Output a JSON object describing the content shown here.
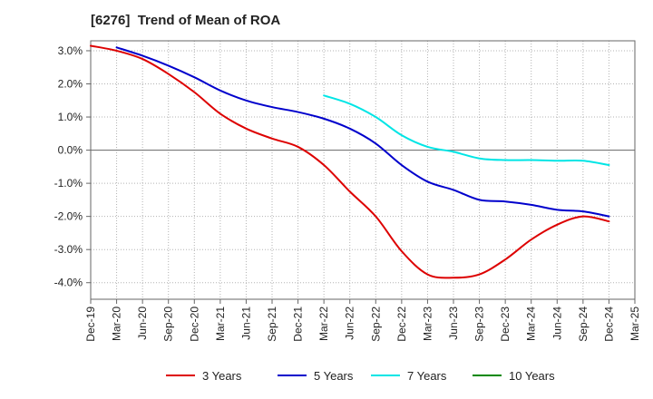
{
  "chart_data": {
    "type": "line",
    "title": "[6276]  Trend of Mean of ROA",
    "xlabel": "",
    "ylabel": "",
    "categories": [
      "Dec-19",
      "Mar-20",
      "Jun-20",
      "Sep-20",
      "Dec-20",
      "Mar-21",
      "Jun-21",
      "Sep-21",
      "Dec-21",
      "Mar-22",
      "Jun-22",
      "Sep-22",
      "Dec-22",
      "Mar-23",
      "Jun-23",
      "Sep-23",
      "Dec-23",
      "Mar-24",
      "Jun-24",
      "Sep-24",
      "Dec-24",
      "Mar-25"
    ],
    "ylim": [
      -4.5,
      3.3
    ],
    "yticks": [
      3.0,
      2.0,
      1.0,
      0.0,
      -1.0,
      -2.0,
      -3.0,
      -4.0
    ],
    "ytick_labels": [
      "3.0%",
      "2.0%",
      "1.0%",
      "0.0%",
      "-1.0%",
      "-2.0%",
      "-3.0%",
      "-4.0%"
    ],
    "grid": true,
    "legend_position": "bottom",
    "series": [
      {
        "name": "3 Years",
        "color": "#dd0000",
        "values": [
          3.15,
          3.0,
          2.75,
          2.3,
          1.75,
          1.1,
          0.65,
          0.35,
          0.1,
          -0.45,
          -1.25,
          -2.0,
          -3.05,
          -3.75,
          -3.85,
          -3.75,
          -3.3,
          -2.7,
          -2.25,
          -2.0,
          -2.15,
          null
        ]
      },
      {
        "name": "5 Years",
        "color": "#0000cc",
        "values": [
          null,
          3.1,
          2.85,
          2.55,
          2.2,
          1.8,
          1.5,
          1.3,
          1.15,
          0.95,
          0.65,
          0.2,
          -0.45,
          -0.95,
          -1.2,
          -1.5,
          -1.55,
          -1.65,
          -1.8,
          -1.85,
          -2.0,
          null
        ]
      },
      {
        "name": "7 Years",
        "color": "#00e5e5",
        "values": [
          null,
          null,
          null,
          null,
          null,
          null,
          null,
          null,
          null,
          1.65,
          1.4,
          1.0,
          0.45,
          0.1,
          -0.05,
          -0.25,
          -0.3,
          -0.3,
          -0.32,
          -0.32,
          -0.45,
          null
        ]
      },
      {
        "name": "10 Years",
        "color": "#008800",
        "values": [
          null,
          null,
          null,
          null,
          null,
          null,
          null,
          null,
          null,
          null,
          null,
          null,
          null,
          null,
          null,
          null,
          null,
          null,
          null,
          null,
          null,
          null
        ]
      }
    ]
  }
}
